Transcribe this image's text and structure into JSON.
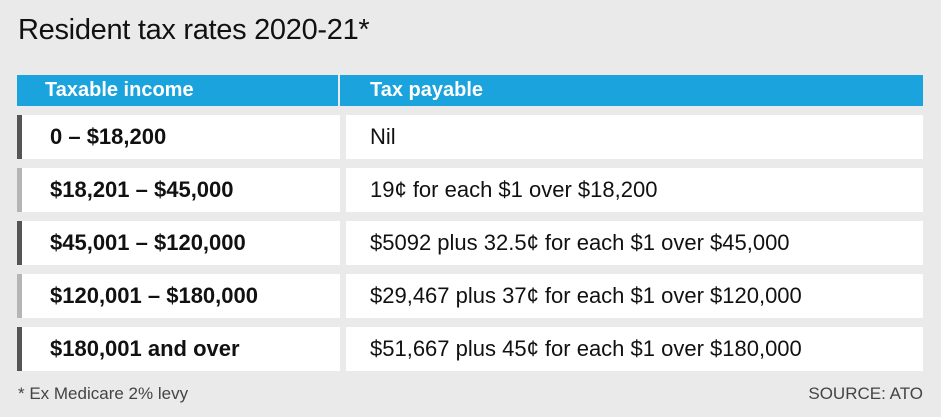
{
  "title": "Resident tax rates 2020-21*",
  "table": {
    "headers": [
      "Taxable income",
      "Tax payable"
    ],
    "rows": [
      {
        "income": "0 – $18,200",
        "tax": "Nil"
      },
      {
        "income": "$18,201 – $45,000",
        "tax": "19¢ for each $1 over $18,200"
      },
      {
        "income": "$45,001 – $120,000",
        "tax": "$5092 plus 32.5¢ for each $1 over $45,000"
      },
      {
        "income": "$120,001 – $180,000",
        "tax": "$29,467 plus 37¢ for each $1 over $120,000"
      },
      {
        "income": "$180,001 and over",
        "tax": "$51,667 plus 45¢ for each $1 over $180,000"
      }
    ]
  },
  "footnote": "* Ex Medicare 2% levy",
  "source": "SOURCE: ATO",
  "colors": {
    "header_bg": "#1aa3dd",
    "page_bg": "#eaeaea",
    "row_marker_dark": "#555555",
    "row_marker_light": "#b5b5b5"
  }
}
